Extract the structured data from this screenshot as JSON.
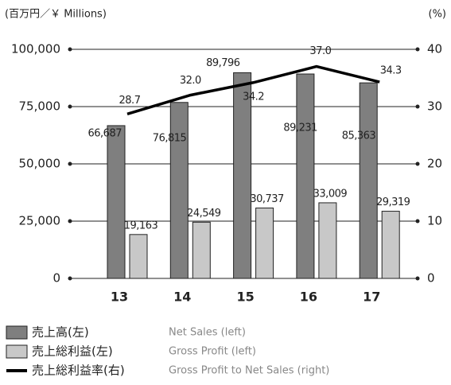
{
  "chart_data": {
    "type": "bar_line",
    "unit_left": "(百万円／￥ Millions)",
    "unit_right": "(%)",
    "categories": [
      "13",
      "14",
      "15",
      "16",
      "17"
    ],
    "series": [
      {
        "name": "売上高(左)",
        "name_en": "Net Sales (left)",
        "color": "#7f7f7f",
        "type": "bar",
        "values": [
          66687,
          76815,
          89796,
          89231,
          85363
        ],
        "value_labels": [
          "66,687",
          "76,815",
          "89,796",
          "89,231",
          "85,363"
        ]
      },
      {
        "name": "売上総利益(左)",
        "name_en": "Gross Profit (left)",
        "color": "#c8c8c8",
        "type": "bar",
        "values": [
          19163,
          24549,
          30737,
          33009,
          29319
        ],
        "value_labels": [
          "19,163",
          "24,549",
          "30,737",
          "33,009",
          "29,319"
        ]
      },
      {
        "name": "売上総利益率(右)",
        "name_en": "Gross Profit to Net Sales (right)",
        "color": "#000000",
        "type": "line",
        "axis": "y2",
        "values": [
          28.7,
          32.0,
          34.2,
          37.0,
          34.3
        ],
        "value_labels": [
          "28.7",
          "32.0",
          "34.2",
          "37.0",
          "34.3"
        ]
      }
    ],
    "ylim": [
      0,
      100000
    ],
    "yticks": [
      0,
      {
        "value": 25000,
        "label": "25,000"
      },
      {
        "value": 50000,
        "label": "50,000"
      },
      {
        "value": 75000,
        "label": "75,000"
      },
      {
        "value": 100000,
        "label": "100,000"
      }
    ],
    "y2lim": [
      0,
      40
    ],
    "y2ticks": [
      0,
      10,
      20,
      30,
      40
    ],
    "grid": true
  }
}
